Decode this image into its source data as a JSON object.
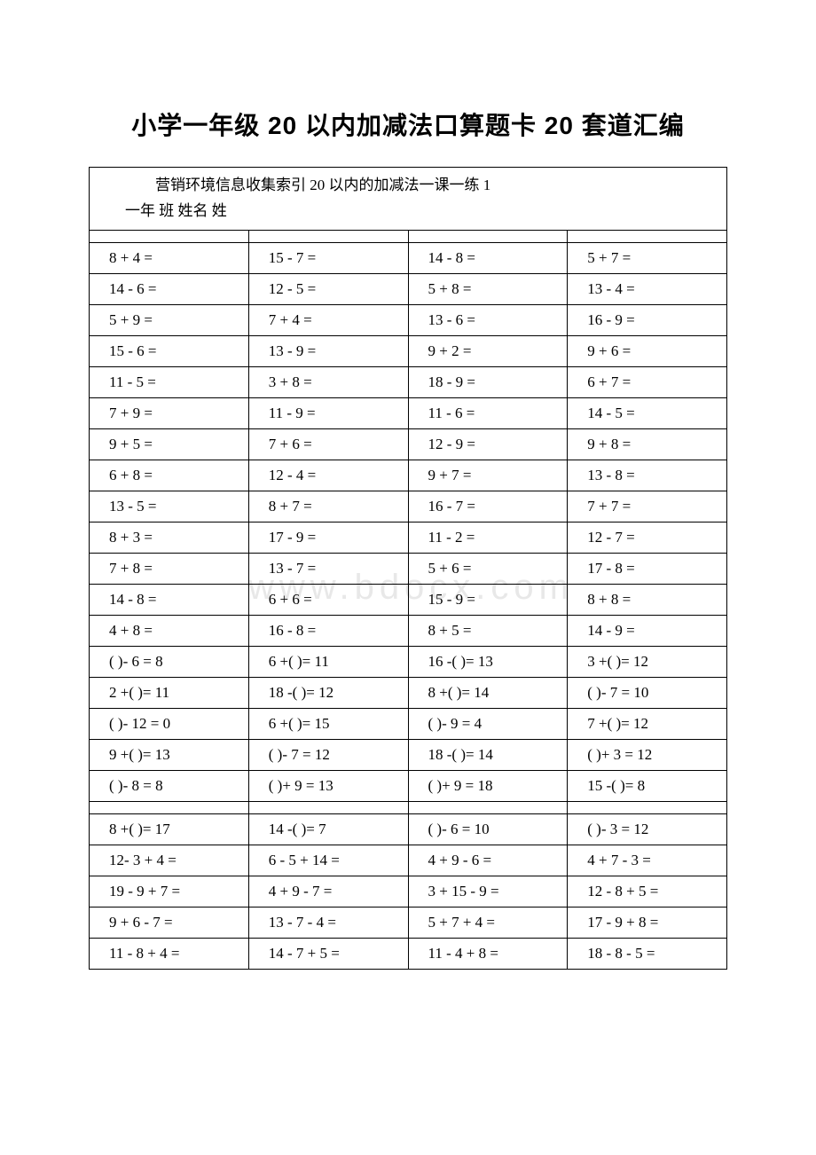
{
  "title": "小学一年级 20 以内加减法口算题卡 20 套道汇编",
  "header_line1": "　　营销环境信息收集索引 20 以内的加减法一课一练 1",
  "header_line2": "一年 班 姓名 姓",
  "watermark_text": "www.bdocx.com",
  "rows": [
    [
      "8 + 4 =",
      "15 - 7 =",
      "14 - 8 =",
      "5 + 7 ="
    ],
    [
      "14 - 6 =",
      "12 - 5 =",
      "5 + 8 =",
      "13 - 4 ="
    ],
    [
      "5 + 9 =",
      "7 + 4 =",
      "13 - 6 =",
      "16 - 9 ="
    ],
    [
      "15 - 6 =",
      "13 - 9 =",
      "9 + 2 =",
      "9 + 6 ="
    ],
    [
      "11 - 5 =",
      "3 + 8 =",
      "18 - 9 =",
      "6 + 7 ="
    ],
    [
      "7 + 9 =",
      "11 - 9 =",
      "11 - 6 =",
      "14 - 5 ="
    ],
    [
      "9 + 5 =",
      "7 + 6 =",
      "12 - 9 =",
      "9 + 8 ="
    ],
    [
      "6 + 8 =",
      "12 - 4 =",
      "9 + 7 =",
      "13 - 8 ="
    ],
    [
      "13 - 5 =",
      "8 + 7 =",
      "16 - 7 =",
      "7 + 7 ="
    ],
    [
      "8 + 3 =",
      "17 - 9 =",
      "11 - 2 =",
      "12 - 7 ="
    ],
    [
      "7 + 8 =",
      "13 - 7 =",
      "5 + 6 =",
      "17 - 8 ="
    ],
    [
      "14 - 8 =",
      "6 + 6 =",
      "15 - 9 =",
      "8 + 8 ="
    ],
    [
      "4 + 8 =",
      "16 - 8 =",
      "8 + 5 =",
      "14 - 9 ="
    ],
    [
      "( )- 6 = 8",
      "6 +( )= 11",
      "16 -( )= 13",
      "3 +( )= 12"
    ],
    [
      "2 +( )= 11",
      "18 -( )= 12",
      "8 +( )= 14",
      "( )- 7 = 10"
    ],
    [
      "( )- 12 = 0",
      "6 +( )= 15",
      "( )- 9 = 4",
      "7 +( )= 12"
    ],
    [
      "9 +( )= 13",
      "( )- 7 = 12",
      "18 -( )= 14",
      "( )+ 3 = 12"
    ],
    [
      "( )- 8 = 8",
      "( )+ 9 = 13",
      "( )+ 9 = 18",
      "15 -( )= 8"
    ]
  ],
  "rows2": [
    [
      "8 +( )= 17",
      "14 -( )= 7",
      "( )- 6 = 10",
      "( )- 3 = 12"
    ],
    [
      "12- 3 + 4 =",
      "6 - 5 + 14 =",
      "4 + 9 - 6 =",
      "4 + 7 - 3 ="
    ],
    [
      "19 - 9 + 7 =",
      "4 + 9 - 7 =",
      "3 + 15 - 9 =",
      "12 - 8 + 5 ="
    ],
    [
      "9 + 6 - 7 =",
      "13 - 7 - 4 =",
      "5 + 7 + 4 =",
      "17 - 9 + 8 ="
    ],
    [
      "11 - 8 + 4 =",
      "14 - 7 + 5 =",
      "11 - 4 + 8 =",
      "18 - 8 - 5 ="
    ]
  ]
}
